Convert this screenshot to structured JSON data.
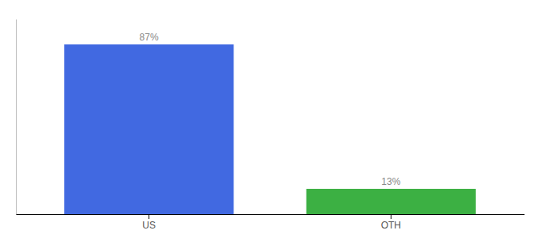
{
  "chart_data": {
    "type": "bar",
    "categories": [
      "US",
      "OTH"
    ],
    "values": [
      87,
      13
    ],
    "value_labels": [
      "87%",
      "13%"
    ],
    "colors": [
      "#4169e1",
      "#3cb043"
    ],
    "ylim": [
      0,
      100
    ],
    "data_labels": true,
    "tick_labels": "x"
  }
}
